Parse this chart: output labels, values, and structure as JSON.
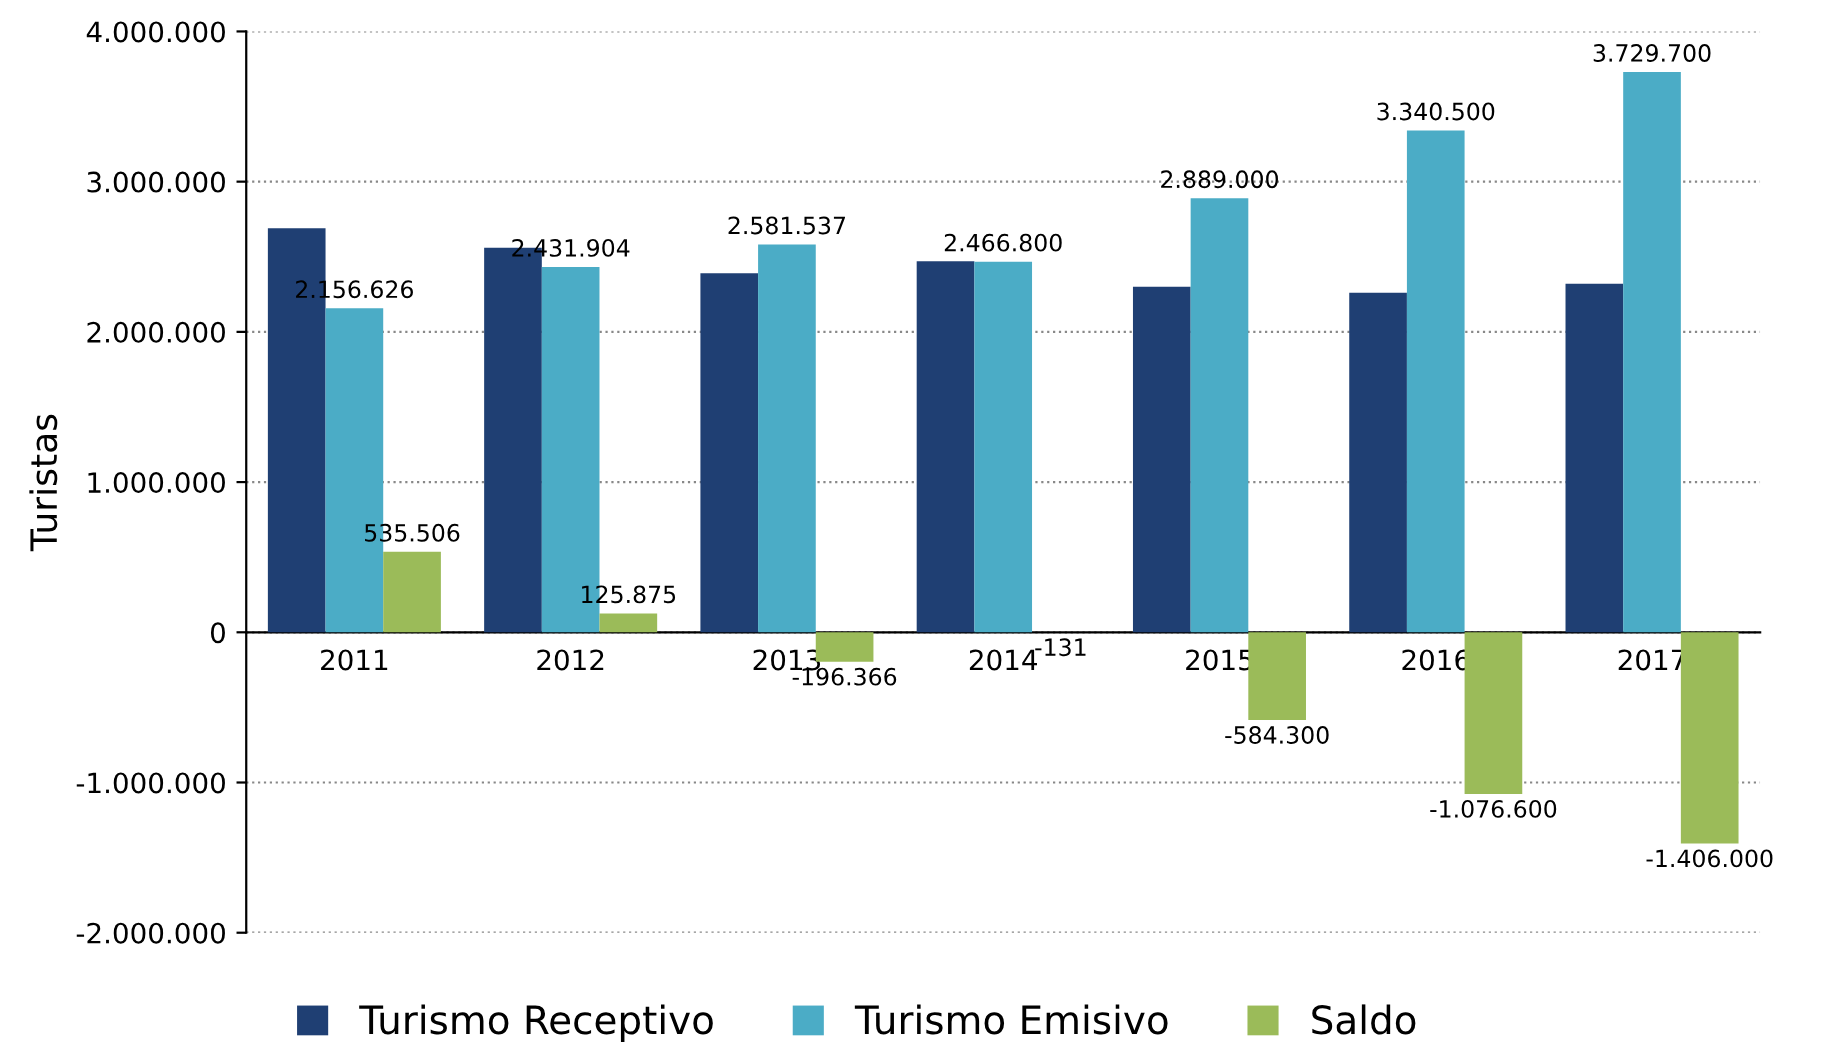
{
  "chart_data": {
    "type": "bar",
    "ylabel": "Turistas",
    "categories": [
      "2011",
      "2012",
      "2013",
      "2014",
      "2015",
      "2016",
      "2017"
    ],
    "series": [
      {
        "name": "Turismo Receptivo",
        "color": "#1f3f73",
        "values": [
          2690000,
          2560000,
          2390000,
          2470000,
          2300000,
          2260000,
          2320000
        ]
      },
      {
        "name": "Turismo Emisivo",
        "color": "#4bacc6",
        "values": [
          2156626,
          2431904,
          2581537,
          2466800,
          2889000,
          3340500,
          3729700
        ],
        "value_labels": [
          "2.156.626",
          "2.431.904",
          "2.581.537",
          "2.466.800",
          "2.889.000",
          "3.340.500",
          "3.729.700"
        ]
      },
      {
        "name": "Saldo",
        "color": "#9bbb59",
        "values": [
          535506,
          125875,
          -196366,
          -131,
          -584300,
          -1076600,
          -1406000
        ],
        "value_labels": [
          "535.506",
          "125.875",
          "-196.366",
          "-131",
          "-584.300",
          "-1.076.600",
          "-1.406.000"
        ]
      }
    ],
    "ylim": [
      -2000000,
      4000000
    ],
    "yticks": [
      {
        "value": -2000000,
        "label": "-2.000.000"
      },
      {
        "value": -1000000,
        "label": "-1.000.000"
      },
      {
        "value": 0,
        "label": "0"
      },
      {
        "value": 1000000,
        "label": "1.000.000"
      },
      {
        "value": 2000000,
        "label": "2.000.000"
      },
      {
        "value": 3000000,
        "label": "3.000.000"
      },
      {
        "value": 4000000,
        "label": "4.000.000"
      }
    ],
    "grid": "y",
    "legend": "bottom"
  }
}
